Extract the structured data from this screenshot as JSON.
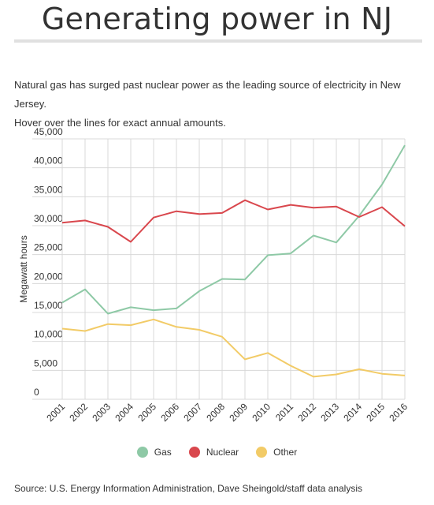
{
  "title": "Generating power in NJ",
  "description": [
    "Natural gas has surged past nuclear power as the leading source of electricity in New Jersey.",
    "Hover over the lines for exact annual amounts."
  ],
  "source": "Source: U.S. Energy Information Administration, Dave Sheingold/staff data analysis",
  "chart_data": {
    "type": "line",
    "title": "",
    "xlabel": "",
    "ylabel": "Megawatt hours",
    "x": [
      "2001",
      "2002",
      "2003",
      "2004",
      "2005",
      "2006",
      "2007",
      "2008",
      "2009",
      "2010",
      "2011",
      "2012",
      "2013",
      "2014",
      "2015",
      "2016"
    ],
    "ylim": [
      0,
      45000
    ],
    "yticks": [
      0,
      5000,
      10000,
      15000,
      20000,
      25000,
      30000,
      35000,
      40000,
      45000
    ],
    "ytick_labels": [
      "0",
      "5,000",
      "10,000",
      "15,000",
      "20,000",
      "25,000",
      "30,000",
      "35,000",
      "40,000",
      "45,000"
    ],
    "grid": true,
    "legend_position": "bottom",
    "series": [
      {
        "name": "Gas",
        "color": "#8ec9a6",
        "values": [
          16700,
          19000,
          14800,
          15900,
          15400,
          15700,
          18700,
          20800,
          20700,
          24900,
          25200,
          28300,
          27100,
          31700,
          37100,
          43900
        ]
      },
      {
        "name": "Nuclear",
        "color": "#d9474d",
        "values": [
          30500,
          30900,
          29800,
          27200,
          31400,
          32500,
          32000,
          32200,
          34400,
          32800,
          33600,
          33100,
          33300,
          31500,
          33200,
          29900
        ]
      },
      {
        "name": "Other",
        "color": "#f2cb67",
        "values": [
          12200,
          11800,
          13000,
          12800,
          13800,
          12500,
          12000,
          10800,
          6900,
          8000,
          5800,
          3900,
          4300,
          5200,
          4400,
          4100
        ]
      }
    ]
  }
}
